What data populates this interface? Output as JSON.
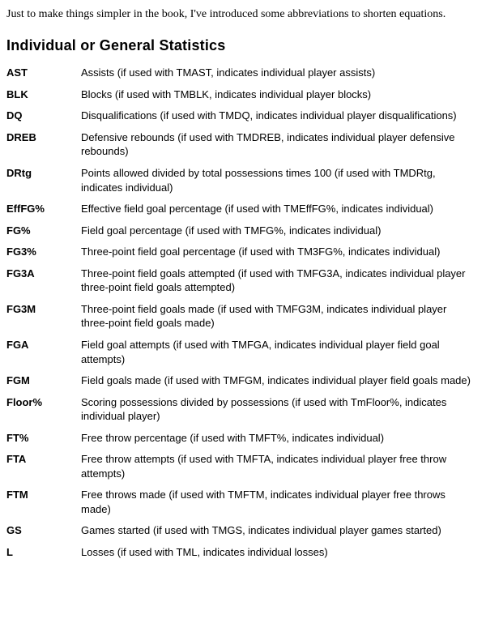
{
  "intro": "Just to make things simpler in the book, I've introduced some abbreviations to shorten equations.",
  "section_heading": "Individual or General Statistics",
  "entries": [
    {
      "term": "AST",
      "def": "Assists (if used with TMAST, indicates individual player assists)"
    },
    {
      "term": "BLK",
      "def": "Blocks (if used with TMBLK, indicates individual player blocks)"
    },
    {
      "term": "DQ",
      "def": "Disqualifications (if used with TMDQ, indicates individual player disqualifications)"
    },
    {
      "term": "DREB",
      "def": "Defensive rebounds (if used with TMDREB, indicates individual player defensive rebounds)"
    },
    {
      "term": "DRtg",
      "def": "Points allowed divided by total possessions times 100 (if used with TMDRtg, indicates individual)"
    },
    {
      "term": "EffFG%",
      "def": "Effective field goal percentage (if used with TMEffFG%, indicates individual)"
    },
    {
      "term": "FG%",
      "def": "Field goal percentage (if used with TMFG%, indicates individual)"
    },
    {
      "term": "FG3%",
      "def": "Three-point field goal percentage (if used with TM3FG%, indicates individual)"
    },
    {
      "term": "FG3A",
      "def": "Three-point field goals attempted (if used with TMFG3A, indicates individual player three-point field goals attempted)"
    },
    {
      "term": "FG3M",
      "def": "Three-point field goals made (if used with TMFG3M, indicates individual player three-point field goals made)"
    },
    {
      "term": "FGA",
      "def": "Field goal attempts (if used with TMFGA, indicates individual player field goal attempts)"
    },
    {
      "term": "FGM",
      "def": "Field goals made (if used with TMFGM, indicates individual player field goals made)"
    },
    {
      "term": "Floor%",
      "def": "Scoring possessions divided by possessions (if used with TmFloor%, indicates individual player)"
    },
    {
      "term": "FT%",
      "def": "Free throw percentage (if used with TMFT%, indicates individual)"
    },
    {
      "term": "FTA",
      "def": "Free throw attempts (if used with TMFTA, indicates individual player free throw attempts)"
    },
    {
      "term": "FTM",
      "def": "Free throws made (if used with TMFTM, indicates individual player free throws made)"
    },
    {
      "term": "GS",
      "def": "Games started (if used with TMGS, indicates individual player games started)"
    },
    {
      "term": "L",
      "def": "Losses (if used with TML, indicates individual losses)"
    }
  ]
}
